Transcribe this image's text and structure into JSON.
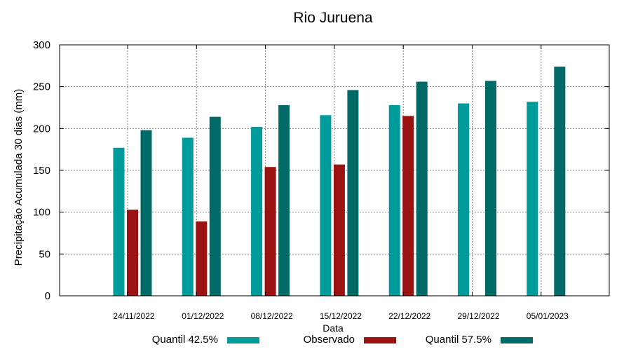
{
  "chart_data": {
    "type": "bar",
    "title": "Rio Juruena",
    "xlabel": "Data",
    "ylabel": "Precipitação Acumulada 30 dias (mm)",
    "ylim": [
      0,
      300
    ],
    "yticks": [
      0,
      50,
      100,
      150,
      200,
      250,
      300
    ],
    "grid": true,
    "legend_position": "bottom",
    "categories": [
      "24/11/2022",
      "01/12/2022",
      "08/12/2022",
      "15/12/2022",
      "22/12/2022",
      "29/12/2022",
      "05/01/2023"
    ],
    "series": [
      {
        "name": "Quantil 42.5%",
        "color": "#009b9b",
        "values": [
          177,
          189,
          202,
          216,
          228,
          230,
          232
        ]
      },
      {
        "name": "Observado",
        "color": "#9a1212",
        "values": [
          103,
          89,
          154,
          157,
          215,
          null,
          null
        ]
      },
      {
        "name": "Quantil 57.5%",
        "color": "#006b66",
        "values": [
          198,
          214,
          228,
          246,
          256,
          257,
          274
        ]
      }
    ]
  }
}
